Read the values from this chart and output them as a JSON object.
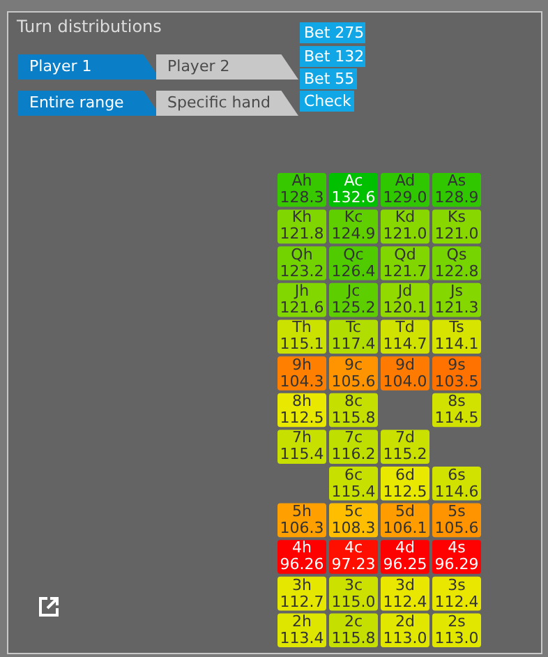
{
  "chart_data": {
    "type": "heatmap",
    "title": "Turn distributions",
    "cell_labels": [
      [
        "128.3",
        "132.6",
        "129.0",
        "128.9"
      ],
      [
        "121.8",
        "124.9",
        "121.0",
        "121.0"
      ],
      [
        "123.2",
        "126.4",
        "121.7",
        "122.8"
      ],
      [
        "121.6",
        "125.2",
        "120.1",
        "121.3"
      ],
      [
        "115.1",
        "117.4",
        "114.7",
        "114.1"
      ],
      [
        "104.3",
        "105.6",
        "104.0",
        "103.5"
      ],
      [
        "112.5",
        "115.8",
        null,
        "114.5"
      ],
      [
        "115.4",
        "116.2",
        "115.2",
        null
      ],
      [
        null,
        "115.4",
        "112.5",
        "114.6"
      ],
      [
        "106.3",
        "108.3",
        "106.1",
        "105.6"
      ],
      [
        "96.26",
        "97.23",
        "96.25",
        "96.29"
      ],
      [
        "112.7",
        "115.0",
        "112.4",
        "112.4"
      ],
      [
        "113.4",
        "115.8",
        "113.0",
        "113.0"
      ]
    ],
    "categories": [
      null,
      null,
      null,
      null
    ],
    "y_categories": [
      null,
      null,
      null,
      null,
      null,
      null,
      null,
      null,
      null,
      null,
      null,
      null,
      null
    ],
    "cells": [
      [
        128.3,
        132.6,
        129.0,
        128.9
      ],
      [
        121.8,
        124.9,
        121.0,
        121.0
      ],
      [
        123.2,
        126.4,
        121.7,
        122.8
      ],
      [
        121.6,
        125.2,
        120.1,
        121.3
      ],
      [
        115.1,
        117.4,
        114.7,
        114.1
      ],
      [
        104.3,
        105.6,
        104.0,
        103.5
      ],
      [
        112.5,
        115.8,
        null,
        114.5
      ],
      [
        115.4,
        116.2,
        115.2,
        null
      ],
      [
        null,
        115.4,
        112.5,
        114.6
      ],
      [
        106.3,
        108.3,
        106.1,
        105.6
      ],
      [
        96.26,
        97.23,
        96.25,
        96.29
      ],
      [
        112.7,
        115.0,
        112.4,
        112.4
      ],
      [
        113.4,
        115.8,
        113.0,
        113.0
      ]
    ],
    "annotations": [
      "Player 1",
      "Player 2",
      "Entire range",
      "Specific hand",
      "Bet 275",
      "Bet 132",
      "Bet 55",
      "Check",
      "Ah",
      "Ac",
      "Ad",
      "As",
      "Kh",
      "Kc",
      "Kd",
      "Ks",
      "Qh",
      "Qc",
      "Qd",
      "Qs",
      "Jh",
      "Jc",
      "Jd",
      "Js",
      "Th",
      "Tc",
      "Td",
      "Ts",
      "9h",
      "9c",
      "9d",
      "9s",
      "8h",
      "8c",
      "8s",
      "7h",
      "7c",
      "7d",
      "6c",
      "6d",
      "6s",
      "5h",
      "5c",
      "5d",
      "5s",
      "4h",
      "4c",
      "4d",
      "4s",
      "3h",
      "3c",
      "3d",
      "3s",
      "2h",
      "2c",
      "2d",
      "2s"
    ]
  }
}
